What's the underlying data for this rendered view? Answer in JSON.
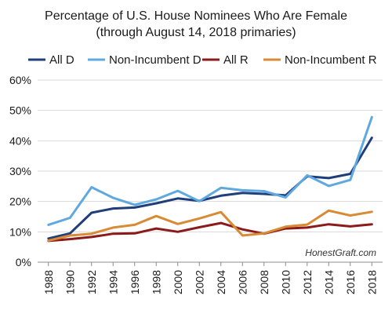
{
  "chart_data": {
    "type": "line",
    "title": "Percentage of U.S. House Nominees Who Are Female",
    "subtitle": "(through August 14, 2018 primaries)",
    "watermark": "HonestGraft.com",
    "legend_position": "top",
    "grid": true,
    "y_ticks": [
      "0%",
      "10%",
      "20%",
      "30%",
      "40%",
      "50%",
      "60%"
    ],
    "ylim": [
      0,
      60
    ],
    "x": [
      "1988",
      "1990",
      "1992",
      "1994",
      "1996",
      "1998",
      "2000",
      "2002",
      "2004",
      "2006",
      "2008",
      "2010",
      "2012",
      "2014",
      "2016",
      "2018"
    ],
    "series": [
      {
        "name": "All D",
        "color": "#1f3e7a",
        "values": [
          7.8,
          9.5,
          16.3,
          17.7,
          18.0,
          19.4,
          21.0,
          20.2,
          21.9,
          22.8,
          22.5,
          22.0,
          28.3,
          27.7,
          29.1,
          41.0
        ]
      },
      {
        "name": "Non-Incumbent D",
        "color": "#5fa8e0",
        "values": [
          12.3,
          14.6,
          24.7,
          21.2,
          18.9,
          20.7,
          23.5,
          20.1,
          24.5,
          23.7,
          23.4,
          21.3,
          28.6,
          25.1,
          27.1,
          47.8
        ]
      },
      {
        "name": "All R",
        "color": "#8b1a1a",
        "values": [
          7.0,
          7.6,
          8.3,
          9.4,
          9.5,
          11.1,
          10.0,
          11.5,
          12.9,
          10.8,
          9.4,
          11.1,
          11.4,
          12.5,
          11.8,
          12.5
        ]
      },
      {
        "name": "Non-Incumbent R",
        "color": "#d98a34",
        "values": [
          7.1,
          8.8,
          9.4,
          11.4,
          12.3,
          15.2,
          12.6,
          14.4,
          16.5,
          8.8,
          9.5,
          11.7,
          12.4,
          17.0,
          15.4,
          16.6
        ]
      }
    ]
  }
}
